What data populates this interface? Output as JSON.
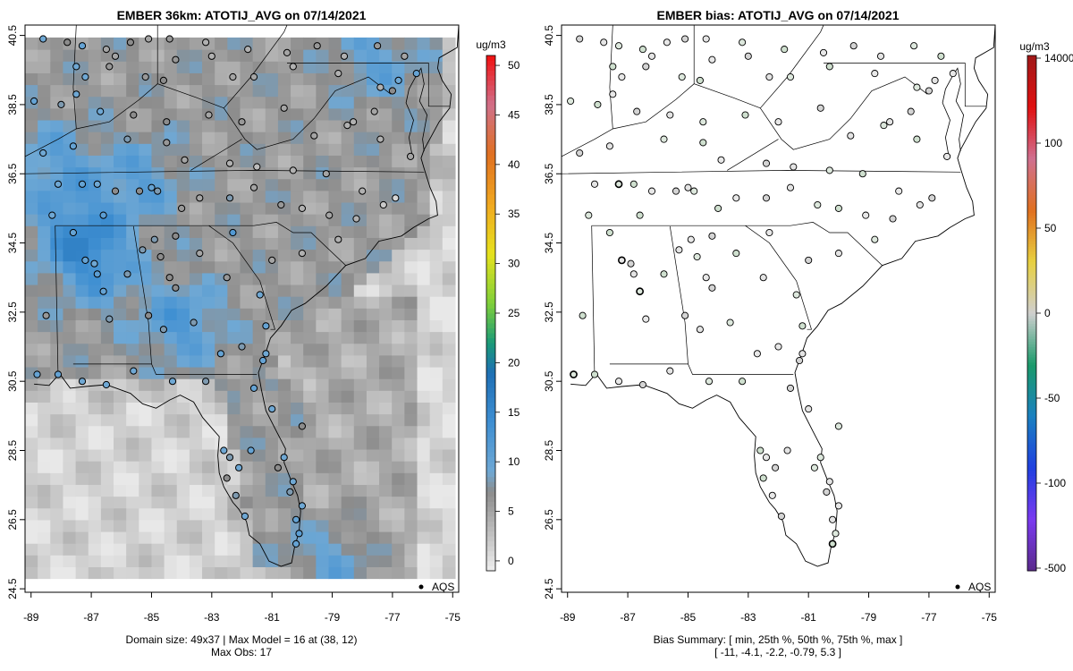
{
  "colors": {
    "background": "#ffffff",
    "no_data": "#cfcfcf",
    "land_line": "#000000"
  },
  "left_panel": {
    "title": "EMBER 36km: ATOTIJ_AVG on 07/14/2021",
    "legend_units": "ug/m3",
    "point_legend": "AQS",
    "footer_line1": "Domain size: 49x37 | Max Model = 16 at (38, 12)",
    "footer_line2": "Max Obs: 17"
  },
  "right_panel": {
    "title": "EMBER bias: ATOTIJ_AVG on 07/14/2021",
    "legend_units": "ug/m3",
    "point_legend": "AQS",
    "footer_line1": "Bias Summary: [ min, 25th %, 50th %, 75th %, max ]",
    "footer_line2": "[ -11,   -4.1,   -2.2,   -0.79,   5.3 ]"
  },
  "chart_data": [
    {
      "type": "heatmap",
      "title": "EMBER 36km: ATOTIJ_AVG on 07/14/2021",
      "x_ticks": [
        "-89",
        "-87",
        "-85",
        "-83",
        "-81",
        "-79",
        "-77",
        "-75"
      ],
      "y_ticks": [
        "24.5",
        "26.5",
        "28.5",
        "30.5",
        "32.5",
        "34.5",
        "36.5",
        "38.5",
        "40.5"
      ],
      "xlim": [
        -89.2,
        -74.8
      ],
      "ylim": [
        24.4,
        40.8
      ],
      "colorbar_ticks": [
        "0",
        "5",
        "10",
        "15",
        "20",
        "25",
        "30",
        "35",
        "40",
        "45",
        "50"
      ],
      "colorbar_range": [
        -1,
        51
      ],
      "colorbar_stops": [
        {
          "v": -1,
          "c": "#eeeeee"
        },
        {
          "v": 7,
          "c": "#8c8c8c"
        },
        {
          "v": 9,
          "c": "#6fa8d4"
        },
        {
          "v": 14,
          "c": "#3f8fd2"
        },
        {
          "v": 19,
          "c": "#1e6fb4"
        },
        {
          "v": 22,
          "c": "#1a9a78"
        },
        {
          "v": 26,
          "c": "#7fcf3a"
        },
        {
          "v": 31,
          "c": "#e6e21e"
        },
        {
          "v": 36,
          "c": "#f0a820"
        },
        {
          "v": 41,
          "c": "#e07020"
        },
        {
          "v": 46,
          "c": "#d0708a"
        },
        {
          "v": 51,
          "c": "#f01010"
        }
      ],
      "max_model": 16,
      "max_obs": 17
    },
    {
      "type": "scatter",
      "title": "EMBER bias: ATOTIJ_AVG on 07/14/2021",
      "x_ticks": [
        "-89",
        "-87",
        "-85",
        "-83",
        "-81",
        "-79",
        "-77",
        "-75"
      ],
      "y_ticks": [
        "24.5",
        "26.5",
        "28.5",
        "30.5",
        "32.5",
        "34.5",
        "36.5",
        "38.5",
        "40.5"
      ],
      "xlim": [
        -89.2,
        -74.8
      ],
      "ylim": [
        24.4,
        40.8
      ],
      "colorbar_ticks": [
        "-500",
        "-100",
        "-50",
        "0",
        "50",
        "100",
        "14000"
      ],
      "colorbar_stops": [
        {
          "c": "#5a2a8a"
        },
        {
          "c": "#7a3af0"
        },
        {
          "c": "#2040e0"
        },
        {
          "c": "#1a80c0"
        },
        {
          "c": "#1a9a6a"
        },
        {
          "c": "#cfcfcf"
        },
        {
          "c": "#e8d040"
        },
        {
          "c": "#e07020"
        },
        {
          "c": "#d07090"
        },
        {
          "c": "#e01010"
        },
        {
          "c": "#a01818"
        }
      ],
      "bias_summary": {
        "min": -11,
        "p25": -4.1,
        "p50": -2.2,
        "p75": -0.79,
        "max": 5.3
      }
    }
  ],
  "stations": [
    [
      -88.6,
      40.4,
      9
    ],
    [
      -87.8,
      40.3,
      7
    ],
    [
      -87.3,
      40.2,
      10
    ],
    [
      -86.5,
      40.1,
      5
    ],
    [
      -85.7,
      40.3,
      7
    ],
    [
      -85.1,
      40.4,
      5
    ],
    [
      -84.4,
      40.4,
      6
    ],
    [
      -83.2,
      40.3,
      4
    ],
    [
      -81.8,
      40.1,
      4
    ],
    [
      -80.5,
      40.0,
      5
    ],
    [
      -79.5,
      40.2,
      6
    ],
    [
      -78.6,
      39.9,
      4
    ],
    [
      -77.5,
      40.2,
      6
    ],
    [
      -76.6,
      39.9,
      5
    ],
    [
      -76.2,
      39.4,
      10
    ],
    [
      -77.0,
      38.9,
      7
    ],
    [
      -76.8,
      39.2,
      9
    ],
    [
      -77.4,
      39.0,
      4
    ],
    [
      -87.5,
      39.6,
      9
    ],
    [
      -87.2,
      39.3,
      9
    ],
    [
      -86.4,
      39.6,
      6
    ],
    [
      -86.2,
      39.9,
      5
    ],
    [
      -85.2,
      39.3,
      6
    ],
    [
      -84.6,
      39.2,
      7
    ],
    [
      -84.2,
      39.8,
      6
    ],
    [
      -83.0,
      39.9,
      4
    ],
    [
      -82.3,
      39.3,
      5
    ],
    [
      -81.6,
      39.3,
      5
    ],
    [
      -80.3,
      39.6,
      4
    ],
    [
      -78.8,
      39.4,
      4
    ],
    [
      -77.6,
      38.3,
      5
    ],
    [
      -78.3,
      38.0,
      4
    ],
    [
      -88.9,
      38.6,
      10
    ],
    [
      -88.0,
      38.5,
      8
    ],
    [
      -87.5,
      38.8,
      9
    ],
    [
      -86.7,
      38.3,
      9
    ],
    [
      -85.6,
      38.2,
      7
    ],
    [
      -84.5,
      38.0,
      7
    ],
    [
      -83.1,
      38.2,
      5
    ],
    [
      -82.0,
      38.0,
      6
    ],
    [
      -80.6,
      38.4,
      5
    ],
    [
      -79.6,
      37.6,
      5
    ],
    [
      -78.5,
      37.9,
      4
    ],
    [
      -77.4,
      37.5,
      4
    ],
    [
      -76.4,
      37.0,
      5
    ],
    [
      -88.6,
      37.1,
      9
    ],
    [
      -87.6,
      37.3,
      10
    ],
    [
      -85.8,
      37.5,
      8
    ],
    [
      -84.5,
      37.4,
      6
    ],
    [
      -83.9,
      36.9,
      5
    ],
    [
      -82.4,
      36.8,
      4
    ],
    [
      -81.5,
      36.7,
      3
    ],
    [
      -80.3,
      36.6,
      4
    ],
    [
      -79.2,
      36.5,
      5
    ],
    [
      -78.0,
      36.0,
      4
    ],
    [
      -76.9,
      35.8,
      1
    ],
    [
      -88.1,
      36.2,
      9
    ],
    [
      -87.3,
      36.2,
      10
    ],
    [
      -86.8,
      36.2,
      9
    ],
    [
      -86.2,
      36.0,
      7
    ],
    [
      -85.4,
      36.0,
      7
    ],
    [
      -85.0,
      36.1,
      10
    ],
    [
      -84.8,
      36.0,
      8
    ],
    [
      -84.0,
      35.5,
      6
    ],
    [
      -83.4,
      35.8,
      5
    ],
    [
      -82.4,
      35.8,
      8
    ],
    [
      -81.6,
      36.1,
      5
    ],
    [
      -80.7,
      35.6,
      6
    ],
    [
      -80.0,
      35.5,
      4
    ],
    [
      -79.1,
      35.3,
      5
    ],
    [
      -78.2,
      35.2,
      4
    ],
    [
      -77.3,
      35.6,
      2
    ],
    [
      -88.3,
      35.3,
      9
    ],
    [
      -86.6,
      35.3,
      11
    ],
    [
      -84.9,
      34.6,
      8
    ],
    [
      -84.2,
      34.7,
      7
    ],
    [
      -85.3,
      34.3,
      8
    ],
    [
      -84.7,
      34.1,
      7
    ],
    [
      -83.4,
      34.2,
      5
    ],
    [
      -82.3,
      34.8,
      12
    ],
    [
      -81.0,
      34.0,
      5
    ],
    [
      -80.0,
      34.2,
      4
    ],
    [
      -78.8,
      34.6,
      4
    ],
    [
      -87.6,
      34.8,
      10
    ],
    [
      -87.2,
      34.0,
      10
    ],
    [
      -86.9,
      33.9,
      9
    ],
    [
      -86.8,
      33.6,
      11
    ],
    [
      -86.6,
      33.1,
      10
    ],
    [
      -85.8,
      33.6,
      8
    ],
    [
      -84.4,
      33.5,
      7
    ],
    [
      -84.2,
      33.2,
      7
    ],
    [
      -82.5,
      33.5,
      6
    ],
    [
      -81.4,
      33.0,
      9
    ],
    [
      -88.5,
      32.4,
      6
    ],
    [
      -86.4,
      32.3,
      8
    ],
    [
      -85.1,
      32.4,
      7
    ],
    [
      -84.6,
      32.0,
      8
    ],
    [
      -83.6,
      32.2,
      8
    ],
    [
      -81.2,
      32.1,
      10
    ],
    [
      -82.0,
      31.5,
      8
    ],
    [
      -81.3,
      31.1,
      10
    ],
    [
      -81.2,
      31.3,
      9
    ],
    [
      -88.8,
      30.7,
      10
    ],
    [
      -88.1,
      30.7,
      10
    ],
    [
      -87.3,
      30.5,
      9
    ],
    [
      -86.5,
      30.4,
      9
    ],
    [
      -85.6,
      30.8,
      9
    ],
    [
      -84.3,
      30.5,
      9
    ],
    [
      -83.2,
      30.5,
      8
    ],
    [
      -82.7,
      31.3,
      10
    ],
    [
      -81.6,
      30.3,
      10
    ],
    [
      -81.0,
      29.7,
      9
    ],
    [
      -80.0,
      29.2,
      7
    ],
    [
      -82.6,
      28.5,
      9
    ],
    [
      -82.4,
      28.3,
      8
    ],
    [
      -82.1,
      28.0,
      9
    ],
    [
      -81.7,
      28.5,
      10
    ],
    [
      -80.6,
      28.3,
      9
    ],
    [
      -82.5,
      27.7,
      7
    ],
    [
      -82.2,
      27.2,
      8
    ],
    [
      -81.9,
      26.6,
      9
    ],
    [
      -80.2,
      26.5,
      10
    ],
    [
      -80.1,
      26.1,
      11
    ],
    [
      -80.2,
      25.8,
      10
    ],
    [
      -80.0,
      26.9,
      9
    ],
    [
      -80.4,
      27.3,
      8
    ],
    [
      -80.3,
      27.6,
      9
    ],
    [
      -80.8,
      28.0,
      7
    ]
  ],
  "coast": [
    [
      -88.9,
      30.42
    ],
    [
      -88.4,
      30.38
    ],
    [
      -88.05,
      30.72
    ],
    [
      -87.7,
      30.3
    ],
    [
      -87.2,
      30.35
    ],
    [
      -86.5,
      30.4
    ],
    [
      -85.7,
      30.15
    ],
    [
      -85.3,
      29.85
    ],
    [
      -84.85,
      29.72
    ],
    [
      -84.4,
      29.96
    ],
    [
      -84.05,
      30.1
    ],
    [
      -83.6,
      29.9
    ],
    [
      -83.3,
      29.45
    ],
    [
      -83.0,
      29.15
    ],
    [
      -82.75,
      28.9
    ],
    [
      -82.8,
      28.35
    ],
    [
      -82.75,
      27.85
    ],
    [
      -82.6,
      27.45
    ],
    [
      -82.3,
      27.0
    ],
    [
      -82.1,
      26.8
    ],
    [
      -81.85,
      26.45
    ],
    [
      -81.75,
      26.05
    ],
    [
      -81.4,
      25.8
    ],
    [
      -81.1,
      25.3
    ],
    [
      -80.7,
      25.15
    ],
    [
      -80.35,
      25.25
    ],
    [
      -80.25,
      25.7
    ],
    [
      -80.1,
      26.15
    ],
    [
      -80.05,
      26.75
    ],
    [
      -80.15,
      27.2
    ],
    [
      -80.35,
      27.6
    ],
    [
      -80.6,
      28.15
    ],
    [
      -80.55,
      28.55
    ],
    [
      -80.85,
      29.05
    ],
    [
      -81.2,
      29.65
    ],
    [
      -81.35,
      30.25
    ],
    [
      -81.45,
      30.75
    ],
    [
      -81.2,
      31.35
    ],
    [
      -81.05,
      31.75
    ],
    [
      -80.7,
      32.1
    ],
    [
      -80.35,
      32.55
    ],
    [
      -79.9,
      32.75
    ],
    [
      -79.2,
      33.25
    ],
    [
      -78.55,
      33.85
    ],
    [
      -77.9,
      34.05
    ],
    [
      -77.45,
      34.55
    ],
    [
      -76.7,
      34.7
    ],
    [
      -76.3,
      34.95
    ],
    [
      -75.8,
      35.2
    ],
    [
      -75.5,
      35.3
    ],
    [
      -75.55,
      35.7
    ],
    [
      -75.75,
      36.1
    ],
    [
      -75.95,
      36.65
    ],
    [
      -76.05,
      36.95
    ],
    [
      -75.95,
      37.2
    ],
    [
      -75.7,
      37.6
    ],
    [
      -75.45,
      38.0
    ],
    [
      -75.1,
      38.4
    ],
    [
      -75.05,
      38.8
    ],
    [
      -75.35,
      39.2
    ],
    [
      -75.5,
      39.55
    ],
    [
      -75.45,
      39.85
    ],
    [
      -74.85,
      40.15
    ],
    [
      -74.8,
      40.8
    ]
  ],
  "bay": [
    [
      -76.35,
      37.05
    ],
    [
      -76.45,
      37.55
    ],
    [
      -76.3,
      38.05
    ],
    [
      -76.55,
      38.55
    ],
    [
      -76.45,
      38.95
    ],
    [
      -76.2,
      39.35
    ],
    [
      -76.05,
      39.55
    ],
    [
      -75.95,
      39.1
    ],
    [
      -76.1,
      38.6
    ],
    [
      -75.85,
      38.2
    ],
    [
      -76.0,
      37.5
    ],
    [
      -75.95,
      37.15
    ]
  ],
  "borders": [
    [
      [
        -88.1,
        30.6
      ],
      [
        -88.2,
        35.0
      ]
    ],
    [
      [
        -88.2,
        35.0
      ],
      [
        -81.6,
        35.0
      ],
      [
        -80.85,
        35.1
      ],
      [
        -80.3,
        34.8
      ],
      [
        -79.7,
        34.8
      ],
      [
        -78.55,
        33.85
      ]
    ],
    [
      [
        -85.0,
        31.0
      ],
      [
        -85.1,
        32.2
      ],
      [
        -85.6,
        34.98
      ]
    ],
    [
      [
        -87.6,
        31.0
      ],
      [
        -85.0,
        31.0
      ],
      [
        -84.85,
        30.7
      ],
      [
        -81.5,
        30.7
      ]
    ],
    [
      [
        -83.1,
        35.0
      ],
      [
        -82.3,
        34.5
      ],
      [
        -81.4,
        33.4
      ],
      [
        -80.9,
        32.0
      ],
      [
        -81.05,
        32.0
      ]
    ],
    [
      [
        -89.2,
        36.5
      ],
      [
        -81.7,
        36.6
      ],
      [
        -75.95,
        36.55
      ]
    ],
    [
      [
        -89.2,
        37.0
      ],
      [
        -88.1,
        37.5
      ],
      [
        -87.5,
        37.8
      ],
      [
        -86.4,
        38.0
      ],
      [
        -85.4,
        38.65
      ],
      [
        -84.8,
        39.1
      ],
      [
        -83.5,
        38.7
      ],
      [
        -82.6,
        38.4
      ]
    ],
    [
      [
        -82.6,
        38.4
      ],
      [
        -81.9,
        37.5
      ],
      [
        -81.5,
        37.2
      ],
      [
        -80.3,
        37.5
      ],
      [
        -79.6,
        38.1
      ],
      [
        -78.9,
        38.9
      ],
      [
        -77.8,
        39.3
      ],
      [
        -77.5,
        39.1
      ],
      [
        -77.05,
        38.8
      ]
    ],
    [
      [
        -84.8,
        39.1
      ],
      [
        -84.8,
        40.8
      ]
    ],
    [
      [
        -87.5,
        37.8
      ],
      [
        -87.6,
        39.0
      ],
      [
        -87.5,
        40.8
      ]
    ],
    [
      [
        -82.6,
        38.4
      ],
      [
        -81.7,
        39.3
      ],
      [
        -80.6,
        40.6
      ],
      [
        -80.5,
        40.8
      ]
    ],
    [
      [
        -80.5,
        39.7
      ],
      [
        -75.8,
        39.7
      ],
      [
        -75.8,
        38.45
      ],
      [
        -75.1,
        38.45
      ]
    ],
    [
      [
        -83.7,
        36.6
      ],
      [
        -82.0,
        37.5
      ]
    ]
  ],
  "grid_spec": {
    "west": -89.2,
    "east": -75.2,
    "south": 24.8,
    "north": 40.4,
    "hot": [
      [
        -88.2,
        36.8,
        9
      ],
      [
        -87.5,
        34.8,
        12
      ],
      [
        -84.0,
        32.2,
        11
      ],
      [
        -86.8,
        33.8,
        10
      ],
      [
        -79.0,
        25.3,
        10
      ],
      [
        -77.5,
        39.8,
        8
      ],
      [
        -85.4,
        36.3,
        9
      ]
    ]
  }
}
